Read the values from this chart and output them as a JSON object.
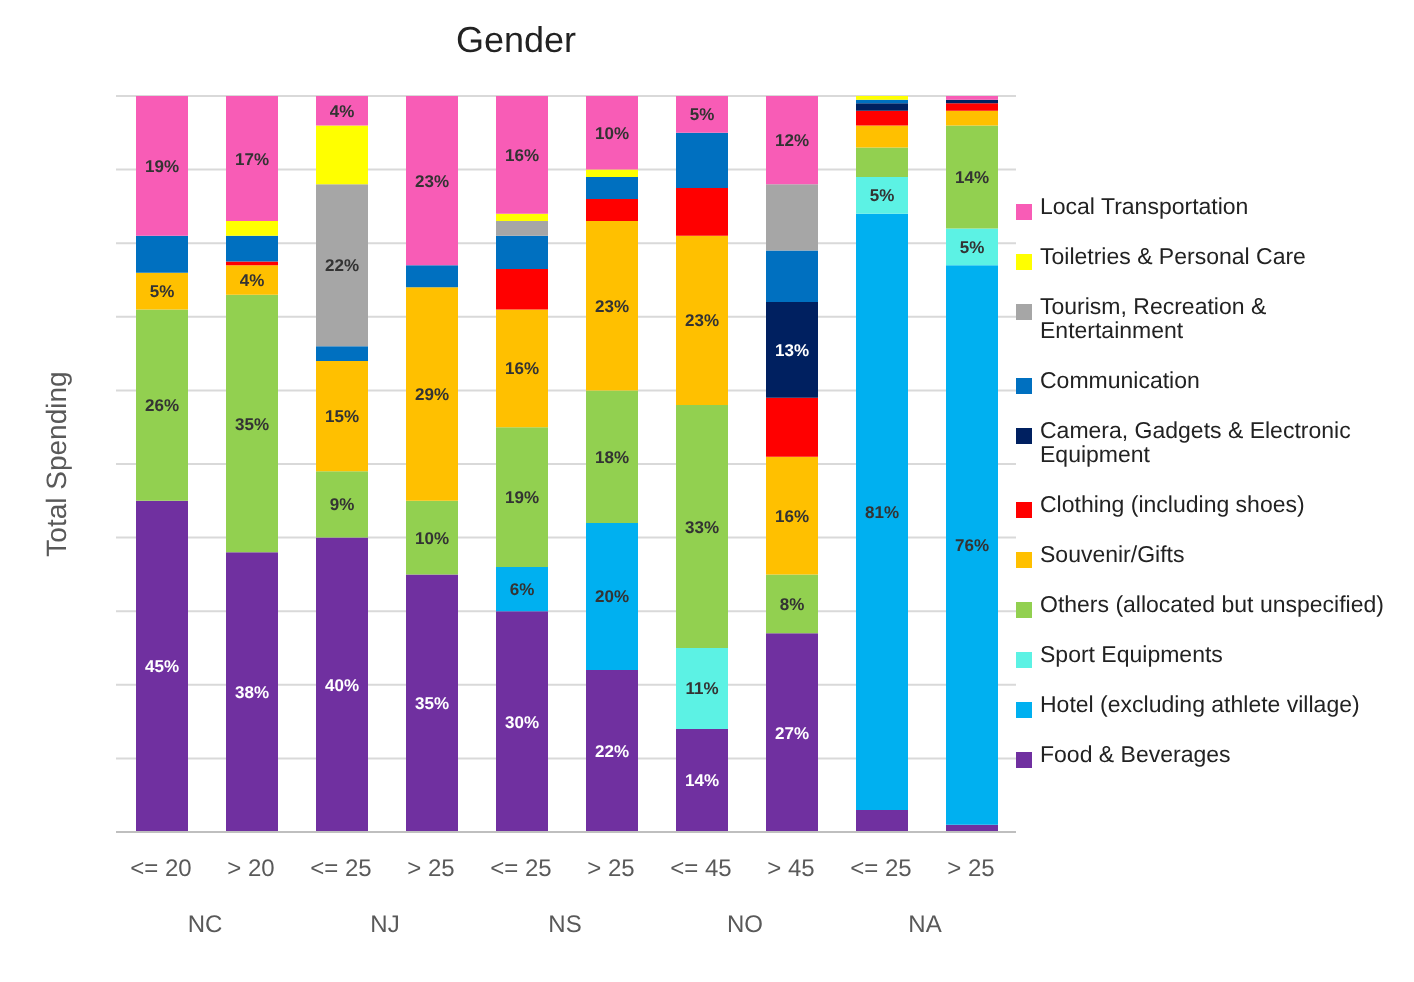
{
  "chart_data": {
    "type": "bar",
    "title": "Gender",
    "ylabel": "Total Spending",
    "stacked": true,
    "categories": [
      "<= 20",
      "> 20",
      "<= 25",
      "> 25",
      "<= 25",
      "> 25",
      "<= 45",
      "> 45",
      "<= 25",
      "> 25"
    ],
    "annotations": [
      "NC",
      "NJ",
      "NS",
      "NO",
      "NA"
    ],
    "ylim": [
      0,
      100
    ],
    "yticks": [
      {
        "value": 0,
        "label": null
      },
      {
        "value": 10,
        "label": null
      },
      {
        "value": 20,
        "label": null
      },
      {
        "value": 30,
        "label": null
      },
      {
        "value": 40,
        "label": null
      },
      {
        "value": 50,
        "label": null
      },
      {
        "value": 60,
        "label": null
      },
      {
        "value": 70,
        "label": null
      },
      {
        "value": 80,
        "label": null
      },
      {
        "value": 90,
        "label": null
      },
      {
        "value": 100,
        "label": null
      }
    ],
    "tick_labels": "x",
    "grid": "y",
    "legend": "right",
    "series": [
      {
        "name": "Food & Beverages",
        "color": "#7030a0",
        "values": [
          45,
          38,
          40,
          35,
          30,
          22,
          14,
          27,
          3,
          1
        ],
        "value_labels": [
          "45%",
          "38%",
          "40%",
          "35%",
          "30%",
          "22%",
          "14%",
          "27%",
          null,
          null
        ]
      },
      {
        "name": "Hotel (excluding athlete village)",
        "color": "#00b0f0",
        "values": [
          0,
          0,
          0,
          0,
          6,
          20,
          0,
          0,
          81,
          76
        ],
        "value_labels": [
          null,
          null,
          null,
          null,
          "6%",
          "20%",
          null,
          null,
          "81%",
          "76%"
        ]
      },
      {
        "name": "Sport Equipments",
        "color": "#5cf2e4",
        "values": [
          0,
          0,
          0,
          0,
          0,
          0,
          11,
          0,
          5,
          5
        ],
        "value_labels": [
          null,
          null,
          null,
          null,
          null,
          null,
          "11%",
          null,
          "5%",
          "5%"
        ]
      },
      {
        "name": "Others (allocated but unspecified)",
        "color": "#92d050",
        "values": [
          26,
          35,
          9,
          10,
          19,
          18,
          33,
          8,
          4,
          14
        ],
        "value_labels": [
          "26%",
          "35%",
          "9%",
          "10%",
          "19%",
          "18%",
          "33%",
          "8%",
          null,
          "14%"
        ]
      },
      {
        "name": "Souvenir/Gifts",
        "color": "#ffc000",
        "values": [
          5,
          4,
          15,
          29,
          16,
          23,
          23,
          16,
          3,
          2
        ],
        "value_labels": [
          "5%",
          "4%",
          "15%",
          "29%",
          "16%",
          "23%",
          "23%",
          "16%",
          null,
          null
        ]
      },
      {
        "name": "Clothing (including shoes)",
        "color": "#ff0000",
        "values": [
          0,
          0.5,
          0,
          0,
          5.5,
          3,
          6.5,
          8,
          2,
          1
        ],
        "value_labels": [
          null,
          null,
          null,
          null,
          null,
          null,
          null,
          null,
          null,
          null
        ]
      },
      {
        "name": "Camera, Gadgets & Electronic Equipment",
        "color": "#002060",
        "values": [
          0,
          0,
          0,
          0,
          0,
          0,
          0,
          13,
          1,
          0.5
        ],
        "value_labels": [
          null,
          null,
          null,
          null,
          null,
          null,
          null,
          "13%",
          null,
          null
        ]
      },
      {
        "name": "Communication",
        "color": "#0070c0",
        "values": [
          5,
          3.5,
          2,
          3,
          4.5,
          3,
          7.5,
          7,
          0.5,
          0
        ],
        "value_labels": [
          null,
          null,
          null,
          null,
          null,
          null,
          null,
          null,
          null,
          null
        ]
      },
      {
        "name": "Tourism, Recreation & Entertainment",
        "color": "#a6a6a6",
        "values": [
          0,
          0,
          22,
          0,
          2,
          0,
          0,
          9,
          0,
          0
        ],
        "value_labels": [
          null,
          null,
          "22%",
          null,
          null,
          null,
          null,
          null,
          null,
          null
        ]
      },
      {
        "name": "Toiletries & Personal Care",
        "color": "#ffff00",
        "values": [
          0,
          2,
          8,
          0,
          1,
          1,
          0,
          0,
          0.5,
          0
        ],
        "value_labels": [
          null,
          null,
          null,
          null,
          null,
          null,
          null,
          null,
          null,
          null
        ]
      },
      {
        "name": "Local Transportation",
        "color": "#f85cb6",
        "values": [
          19,
          17,
          4,
          23,
          16,
          10,
          5,
          12,
          0,
          0.5
        ],
        "value_labels": [
          "19%",
          "17%",
          "4%",
          "23%",
          "16%",
          "10%",
          "5%",
          "12%",
          null,
          null
        ]
      }
    ]
  }
}
